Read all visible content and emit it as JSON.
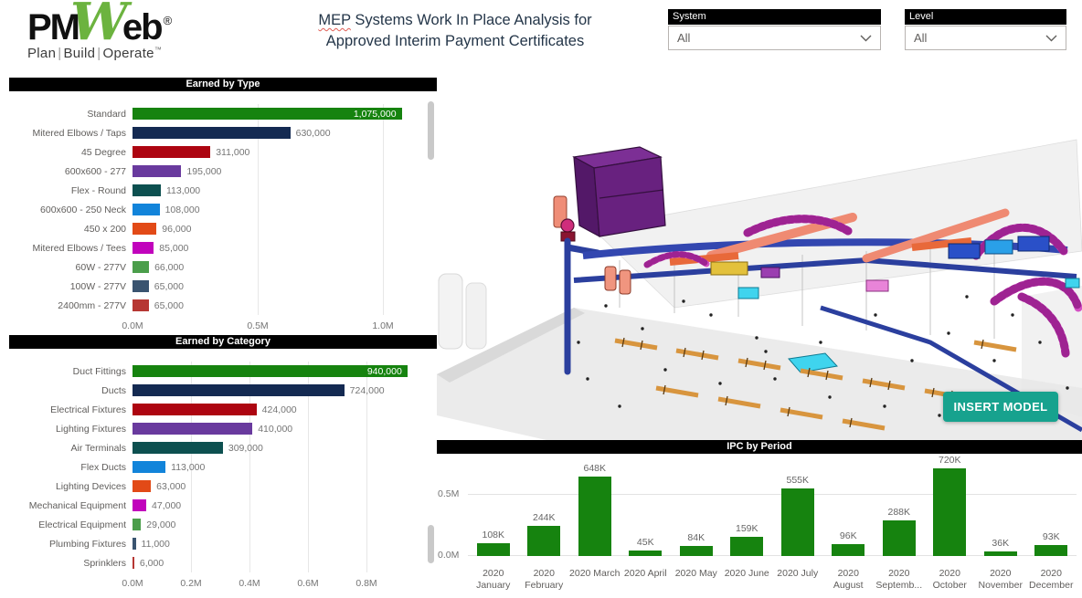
{
  "logo": {
    "pm": "PM",
    "w": "W",
    "eb": "eb",
    "reg": "®",
    "tagline": [
      "Plan",
      "Build",
      "Operate"
    ],
    "tm": "™"
  },
  "header": {
    "title_word": "MEP",
    "title_rest": " Systems Work In Place Analysis for",
    "title_line2": "Approved Interim Payment Certificates",
    "filters": [
      {
        "label": "System",
        "value": "All"
      },
      {
        "label": "Level",
        "value": "All"
      }
    ]
  },
  "model": {
    "insert_button": "INSERT MODEL"
  },
  "colors": {
    "bar_green": "#16830f",
    "header_bar": "#000000",
    "accent_teal_button": "#17a28e",
    "palette": [
      "#16830f",
      "#142a52",
      "#ad0511",
      "#693a9e",
      "#0d5050",
      "#1284da",
      "#e24a17",
      "#c103bc",
      "#4b9e4b",
      "#3a5470",
      "#b63733"
    ]
  },
  "chart_data": [
    {
      "type": "bar",
      "orientation": "horizontal",
      "title": "Earned by Type",
      "categories": [
        "Standard",
        "Mitered Elbows / Taps",
        "45 Degree",
        "600x600 - 277",
        "Flex - Round",
        "600x600 - 250 Neck",
        "450 x 200",
        "Mitered Elbows / Tees",
        "60W - 277V",
        "100W - 277V",
        "2400mm - 277V"
      ],
      "values": [
        1075000,
        630000,
        311000,
        195000,
        113000,
        108000,
        96000,
        85000,
        66000,
        65000,
        65000
      ],
      "value_labels": [
        "1,075,000",
        "630,000",
        "311,000",
        "195,000",
        "113,000",
        "108,000",
        "96,000",
        "85,000",
        "66,000",
        "65,000",
        "65,000"
      ],
      "colors": [
        "#16830f",
        "#142a52",
        "#ad0511",
        "#693a9e",
        "#0d5050",
        "#1284da",
        "#e24a17",
        "#c103bc",
        "#4b9e4b",
        "#3a5470",
        "#b63733"
      ],
      "x_ticks": [
        "0.0M",
        "0.5M",
        "1.0M"
      ],
      "x_tick_step": 500000,
      "xlim": [
        0,
        1170000
      ],
      "grid": true,
      "scrollbar": true
    },
    {
      "type": "bar",
      "orientation": "horizontal",
      "title": "Earned by Category",
      "categories": [
        "Duct Fittings",
        "Ducts",
        "Electrical Fixtures",
        "Lighting Fixtures",
        "Air Terminals",
        "Flex Ducts",
        "Lighting Devices",
        "Mechanical Equipment",
        "Electrical Equipment",
        "Plumbing Fixtures",
        "Sprinklers"
      ],
      "values": [
        940000,
        724000,
        424000,
        410000,
        309000,
        113000,
        63000,
        47000,
        29000,
        11000,
        6000
      ],
      "value_labels": [
        "940,000",
        "724,000",
        "424,000",
        "410,000",
        "309,000",
        "113,000",
        "63,000",
        "47,000",
        "29,000",
        "11,000",
        "6,000"
      ],
      "colors": [
        "#16830f",
        "#142a52",
        "#ad0511",
        "#693a9e",
        "#0d5050",
        "#1284da",
        "#e24a17",
        "#c103bc",
        "#4b9e4b",
        "#3a5470",
        "#b63733"
      ],
      "x_ticks": [
        "0.0M",
        "0.2M",
        "0.4M",
        "0.6M",
        "0.8M"
      ],
      "x_tick_step": 200000,
      "xlim": [
        0,
        1000000
      ],
      "grid": true,
      "scrollbar": true
    },
    {
      "type": "bar",
      "orientation": "vertical",
      "title": "IPC by Period",
      "categories": [
        "2020 January",
        "2020 February",
        "2020 March",
        "2020 April",
        "2020 May",
        "2020 June",
        "2020 July",
        "2020 August",
        "2020 Septemb...",
        "2020 October",
        "2020 November",
        "2020 December"
      ],
      "values": [
        108000,
        244000,
        648000,
        45000,
        84000,
        159000,
        555000,
        96000,
        288000,
        720000,
        36000,
        93000
      ],
      "value_labels": [
        "108K",
        "244K",
        "648K",
        "45K",
        "84K",
        "159K",
        "555K",
        "96K",
        "288K",
        "720K",
        "36K",
        "93K"
      ],
      "bar_color": "#16830f",
      "y_ticks": [
        "0.0M",
        "0.5M"
      ],
      "ylim": [
        0,
        840000
      ],
      "grid": true
    }
  ]
}
